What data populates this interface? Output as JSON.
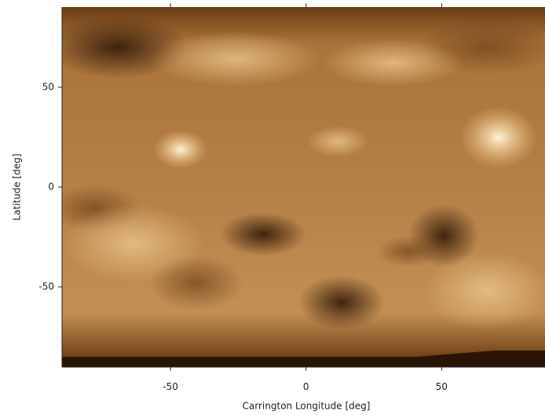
{
  "chart_data": {
    "type": "image",
    "xlabel": "Carrington Longitude [deg]",
    "ylabel": "Latitude [deg]",
    "xlim": [
      -90,
      90
    ],
    "xticks": [
      -50,
      0,
      50
    ],
    "ylim": [
      -90,
      90
    ],
    "yticks": [
      50,
      0,
      -50
    ]
  }
}
